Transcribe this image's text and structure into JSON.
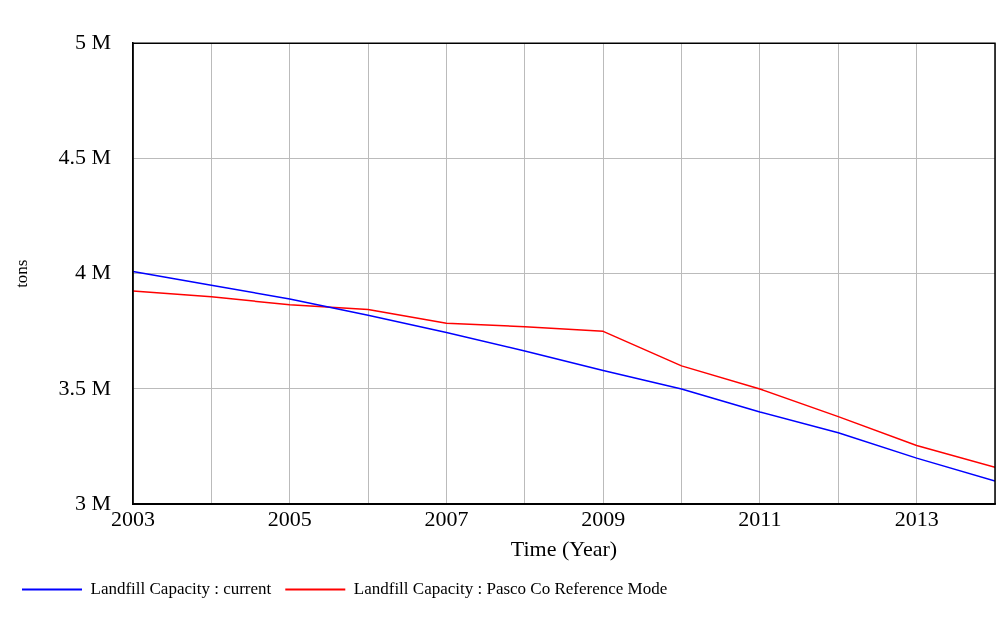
{
  "chart_data": {
    "type": "line",
    "xlabel": "Time (Year)",
    "ylabel": "tons",
    "x": [
      2003,
      2004,
      2005,
      2006,
      2007,
      2008,
      2009,
      2010,
      2011,
      2012,
      2013,
      2014
    ],
    "series": [
      {
        "name": "Landfill Capacity : current",
        "color": "#0000ff",
        "values": [
          4010000,
          3950000,
          3890000,
          3820000,
          3745000,
          3665000,
          3580000,
          3500000,
          3400000,
          3310000,
          3200000,
          3100000
        ]
      },
      {
        "name": "Landfill Capacity : Pasco Co Reference Mode",
        "color": "#ff0000",
        "values": [
          3925000,
          3900000,
          3865000,
          3845000,
          3785000,
          3770000,
          3750000,
          3600000,
          3500000,
          3380000,
          3255000,
          3160000
        ]
      }
    ],
    "xlim": [
      2003,
      2014
    ],
    "xticks": [
      2003,
      {
        "value": 2004,
        "label": null
      },
      2005,
      {
        "value": 2006,
        "label": null
      },
      2007,
      {
        "value": 2008,
        "label": null
      },
      2009,
      {
        "value": 2010,
        "label": null
      },
      2011,
      {
        "value": 2012,
        "label": null
      },
      2013,
      {
        "value": 2014,
        "label": null
      }
    ],
    "ylim": [
      3000000,
      5000000
    ],
    "yticks": [
      {
        "value": 3000000,
        "label": "3 M"
      },
      {
        "value": 3500000,
        "label": "3.5 M"
      },
      {
        "value": 4000000,
        "label": "4 M"
      },
      {
        "value": 4500000,
        "label": "4.5 M"
      },
      {
        "value": 5000000,
        "label": "5 M"
      }
    ],
    "grid": true,
    "legend": "bottom",
    "marker": "none",
    "line_style": "solid"
  }
}
